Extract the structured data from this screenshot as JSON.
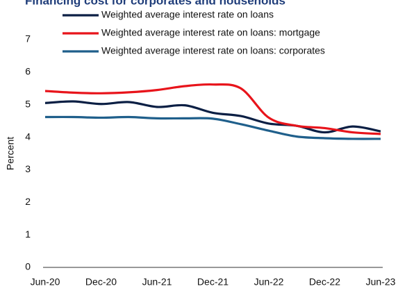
{
  "chart_data": {
    "type": "line",
    "title": "Financing cost for corporates and households",
    "ylabel": "Percent",
    "categories": [
      "Jun-20",
      null,
      "Dec-20",
      null,
      "Jun-21",
      null,
      "Dec-21",
      null,
      "Jun-22",
      null,
      "Dec-22",
      null,
      "Jun-23"
    ],
    "series": [
      {
        "name": "Weighted average interest rate on loans",
        "color": "#0b1f44",
        "values": [
          5.05,
          5.1,
          5.02,
          5.08,
          4.93,
          4.98,
          4.75,
          4.65,
          4.42,
          4.35,
          4.15,
          4.33,
          4.18
        ]
      },
      {
        "name": "Weighted average interest rate on loans: mortgage",
        "color": "#e8141b",
        "values": [
          5.42,
          5.37,
          5.35,
          5.38,
          5.45,
          5.57,
          5.62,
          5.5,
          4.6,
          4.35,
          4.28,
          4.15,
          4.1
        ]
      },
      {
        "name": "Weighted average interest rate on loans: corporates",
        "color": "#1f5f8b",
        "values": [
          4.62,
          4.62,
          4.6,
          4.62,
          4.58,
          4.58,
          4.57,
          4.4,
          4.2,
          4.02,
          3.97,
          3.95,
          3.95
        ]
      }
    ],
    "ylim": [
      0,
      7
    ],
    "yticks": [
      0,
      1,
      2,
      3,
      4,
      5,
      6,
      7
    ],
    "grid": false,
    "legend": "top"
  }
}
